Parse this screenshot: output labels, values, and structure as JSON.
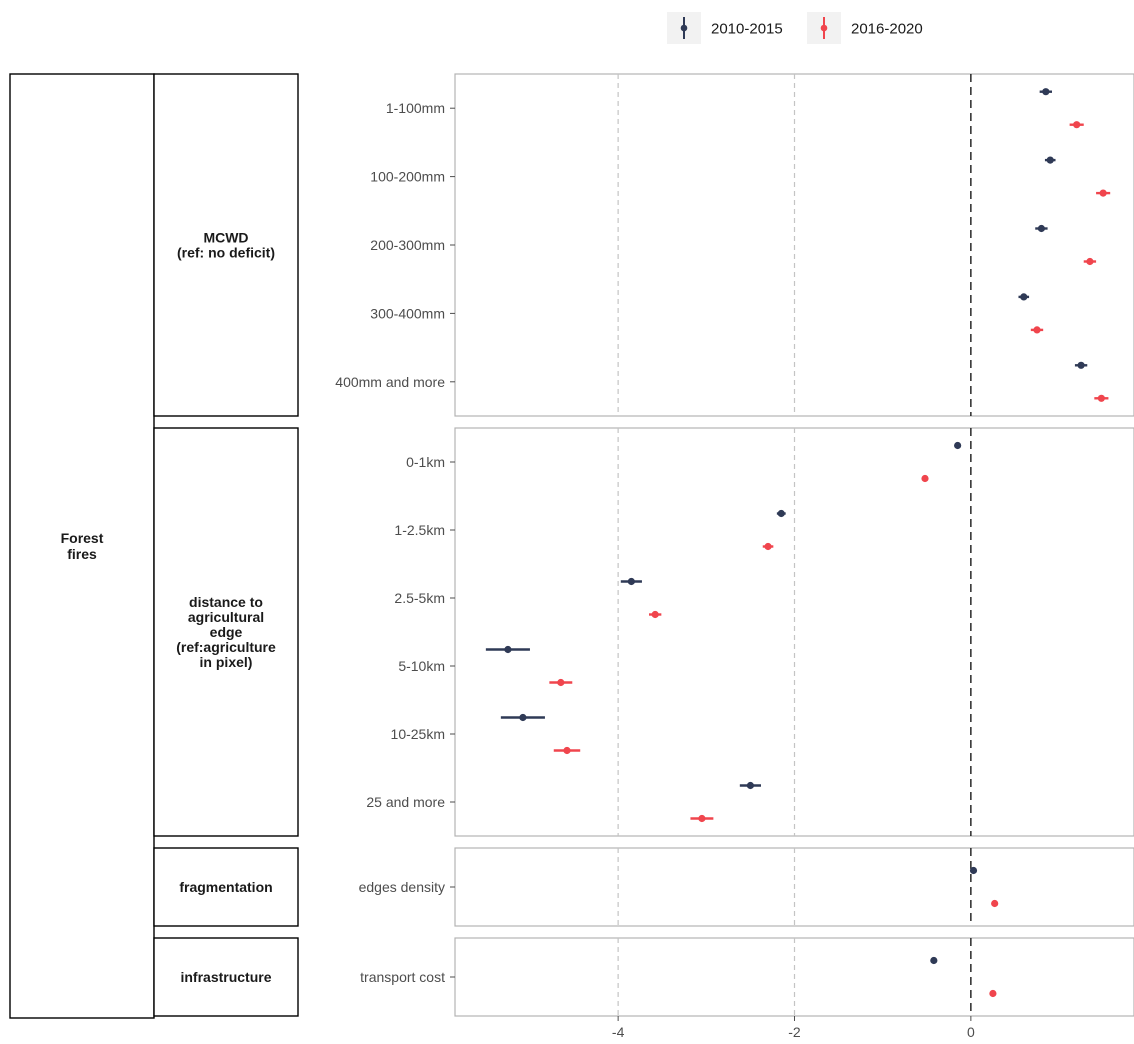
{
  "chart_data": {
    "type": "scatter",
    "subtype": "coefficient plot with horizontal error bars, faceted rows",
    "outcome": "Forest fires",
    "legend": {
      "placement": "top-right",
      "entries": [
        {
          "name": "2010-2015",
          "color": "#2f3a56"
        },
        {
          "name": "2016-2020",
          "color": "#f0454d"
        }
      ]
    },
    "x_axis": {
      "ticks": [
        -4,
        -2,
        0
      ],
      "tick_labels": [
        "-4",
        "-2",
        "0"
      ],
      "xlim": [
        -5.85,
        1.85
      ],
      "reference_line": 0
    },
    "grid": {
      "major_x": true,
      "style": "dashed"
    },
    "groups": [
      {
        "label": "MCWD\n(ref: no deficit)",
        "terms": [
          {
            "label": "1-100mm",
            "2010-2015": {
              "est": 0.85,
              "lo": 0.78,
              "hi": 0.92
            },
            "2016-2020": {
              "est": 1.2,
              "lo": 1.12,
              "hi": 1.28
            }
          },
          {
            "label": "100-200mm",
            "2010-2015": {
              "est": 0.9,
              "lo": 0.84,
              "hi": 0.96
            },
            "2016-2020": {
              "est": 1.5,
              "lo": 1.42,
              "hi": 1.58
            }
          },
          {
            "label": "200-300mm",
            "2010-2015": {
              "est": 0.8,
              "lo": 0.73,
              "hi": 0.87
            },
            "2016-2020": {
              "est": 1.35,
              "lo": 1.28,
              "hi": 1.42
            }
          },
          {
            "label": "300-400mm",
            "2010-2015": {
              "est": 0.6,
              "lo": 0.54,
              "hi": 0.66
            },
            "2016-2020": {
              "est": 0.75,
              "lo": 0.68,
              "hi": 0.82
            }
          },
          {
            "label": "400mm and more",
            "2010-2015": {
              "est": 1.25,
              "lo": 1.18,
              "hi": 1.32
            },
            "2016-2020": {
              "est": 1.48,
              "lo": 1.4,
              "hi": 1.56
            }
          }
        ]
      },
      {
        "label": "distance to\nagricultural\nedge\n(ref:agriculture\nin pixel)",
        "terms": [
          {
            "label": "0-1km",
            "2010-2015": {
              "est": -0.15,
              "lo": -0.18,
              "hi": -0.12
            },
            "2016-2020": {
              "est": -0.52,
              "lo": -0.55,
              "hi": -0.49
            }
          },
          {
            "label": "1-2.5km",
            "2010-2015": {
              "est": -2.15,
              "lo": -2.2,
              "hi": -2.1
            },
            "2016-2020": {
              "est": -2.3,
              "lo": -2.36,
              "hi": -2.24
            }
          },
          {
            "label": "2.5-5km",
            "2010-2015": {
              "est": -3.85,
              "lo": -3.97,
              "hi": -3.73
            },
            "2016-2020": {
              "est": -3.58,
              "lo": -3.65,
              "hi": -3.51
            }
          },
          {
            "label": "5-10km",
            "2010-2015": {
              "est": -5.25,
              "lo": -5.5,
              "hi": -5.0
            },
            "2016-2020": {
              "est": -4.65,
              "lo": -4.78,
              "hi": -4.52
            }
          },
          {
            "label": "10-25km",
            "2010-2015": {
              "est": -5.08,
              "lo": -5.33,
              "hi": -4.83
            },
            "2016-2020": {
              "est": -4.58,
              "lo": -4.73,
              "hi": -4.43
            }
          },
          {
            "label": "25 and more",
            "2010-2015": {
              "est": -2.5,
              "lo": -2.62,
              "hi": -2.38
            },
            "2016-2020": {
              "est": -3.05,
              "lo": -3.18,
              "hi": -2.92
            }
          }
        ]
      },
      {
        "label": "fragmentation",
        "terms": [
          {
            "label": "edges density",
            "2010-2015": {
              "est": 0.03,
              "lo": 0.01,
              "hi": 0.05
            },
            "2016-2020": {
              "est": 0.27,
              "lo": 0.25,
              "hi": 0.29
            }
          }
        ]
      },
      {
        "label": "infrastructure",
        "terms": [
          {
            "label": "transport cost",
            "2010-2015": {
              "est": -0.42,
              "lo": -0.44,
              "hi": -0.4
            },
            "2016-2020": {
              "est": 0.25,
              "lo": 0.23,
              "hi": 0.27
            }
          }
        ]
      }
    ]
  }
}
